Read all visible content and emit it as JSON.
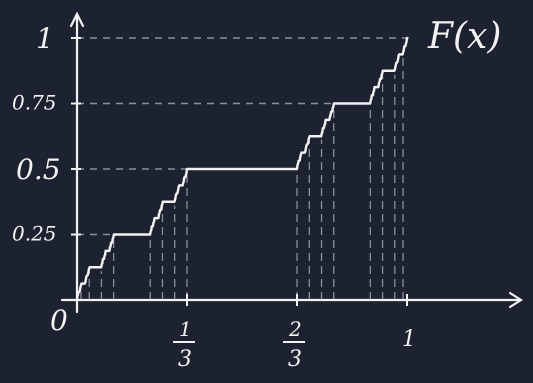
{
  "chart_data": {
    "type": "line",
    "title": "",
    "curve_label": "F(x)",
    "origin_label": "0",
    "xlabel": "",
    "ylabel": "",
    "xlim": [
      0,
      1
    ],
    "ylim": [
      0,
      1
    ],
    "x_ticks": [
      {
        "value": 0.3333,
        "num": "1",
        "den": "3"
      },
      {
        "value": 0.6667,
        "num": "2",
        "den": "3"
      },
      {
        "value": 1,
        "label": "1"
      }
    ],
    "y_ticks": [
      {
        "value": 0.25,
        "label": "0.25"
      },
      {
        "value": 0.5,
        "label": "0.5"
      },
      {
        "value": 0.75,
        "label": "0.75"
      },
      {
        "value": 1,
        "label": "1"
      }
    ],
    "series": [
      {
        "x": [
          0,
          0.3333,
          0.6667,
          1
        ],
        "y": [
          0,
          0.5,
          0.5,
          1
        ]
      }
    ],
    "colors": {
      "background": "#1d2230",
      "ink": "#f2f2f2",
      "guide": "#8a8f99"
    }
  }
}
